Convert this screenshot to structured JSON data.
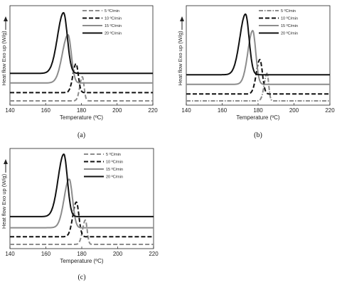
{
  "chart_data": [
    {
      "type": "line",
      "panel_label": "(a)",
      "xlabel": "Temperature (ºC)",
      "ylabel": "Heat flow Exo up (W/g)",
      "xlim": [
        140,
        220
      ],
      "xticks": [
        140,
        160,
        180,
        200,
        220
      ],
      "y_ticks_shown": false,
      "legend_position": "top-right",
      "series": [
        {
          "name": "5 ºC/min",
          "style": "dash",
          "color": "#8c8c8c",
          "baseline": 0.0,
          "peak_x": 180.5,
          "peak_height": 0.35,
          "width_left": 2.0,
          "width_right": 1.4
        },
        {
          "name": "10 ºC/min",
          "style": "dash",
          "color": "#111111",
          "baseline": 0.12,
          "peak_x": 177,
          "peak_height": 0.42,
          "width_left": 2.5,
          "width_right": 1.8
        },
        {
          "name": "15 ºC/min",
          "style": "solid",
          "color": "#8c8c8c",
          "baseline": 0.26,
          "peak_x": 172.5,
          "peak_height": 0.7,
          "width_left": 4.5,
          "width_right": 2.6
        },
        {
          "name": "20 ºC/min",
          "style": "solid",
          "color": "#111111",
          "baseline": 0.4,
          "peak_x": 170,
          "peak_height": 0.88,
          "width_left": 4.8,
          "width_right": 3.0
        }
      ]
    },
    {
      "type": "line",
      "panel_label": "(b)",
      "xlabel": "Temperature (ºC)",
      "ylabel": "Heat flow Exo up (W/g)",
      "xlim": [
        140,
        220
      ],
      "xticks": [
        140,
        160,
        180,
        200,
        220
      ],
      "y_ticks_shown": false,
      "legend_position": "top-right",
      "series": [
        {
          "name": "5 ºC/min",
          "style": "dashdot",
          "color": "#8c8c8c",
          "baseline": 0.0,
          "peak_x": 185,
          "peak_height": 0.4,
          "width_left": 2.2,
          "width_right": 1.3
        },
        {
          "name": "10 ºC/min",
          "style": "dash",
          "color": "#111111",
          "baseline": 0.1,
          "peak_x": 181,
          "peak_height": 0.5,
          "width_left": 2.8,
          "width_right": 2.0
        },
        {
          "name": "15 ºC/min",
          "style": "solid",
          "color": "#8c8c8c",
          "baseline": 0.24,
          "peak_x": 177,
          "peak_height": 0.78,
          "width_left": 3.8,
          "width_right": 2.4
        },
        {
          "name": "20 ºC/min",
          "style": "solid",
          "color": "#111111",
          "baseline": 0.38,
          "peak_x": 173,
          "peak_height": 0.88,
          "width_left": 4.5,
          "width_right": 2.8
        }
      ]
    },
    {
      "type": "line",
      "panel_label": "(c)",
      "xlabel": "Temperature (ºC)",
      "ylabel": "Heat flow Exo up (W/g)",
      "xlim": [
        140,
        220
      ],
      "xticks": [
        140,
        160,
        180,
        200,
        220
      ],
      "y_ticks_shown": false,
      "legend_position": "top-right",
      "series": [
        {
          "name": "5 ºC/min",
          "style": "dash",
          "color": "#8c8c8c",
          "baseline": 0.0,
          "peak_x": 182,
          "peak_height": 0.35,
          "width_left": 2.2,
          "width_right": 1.4
        },
        {
          "name": "10 ºC/min",
          "style": "dash",
          "color": "#111111",
          "baseline": 0.11,
          "peak_x": 177,
          "peak_height": 0.5,
          "width_left": 2.8,
          "width_right": 2.0
        },
        {
          "name": "15 ºC/min",
          "style": "solid",
          "color": "#8c8c8c",
          "baseline": 0.24,
          "peak_x": 173,
          "peak_height": 0.7,
          "width_left": 4.0,
          "width_right": 2.6
        },
        {
          "name": "20 ºC/min",
          "style": "solid",
          "color": "#111111",
          "baseline": 0.4,
          "peak_x": 170,
          "peak_height": 0.9,
          "width_left": 4.5,
          "width_right": 2.8
        }
      ]
    }
  ]
}
